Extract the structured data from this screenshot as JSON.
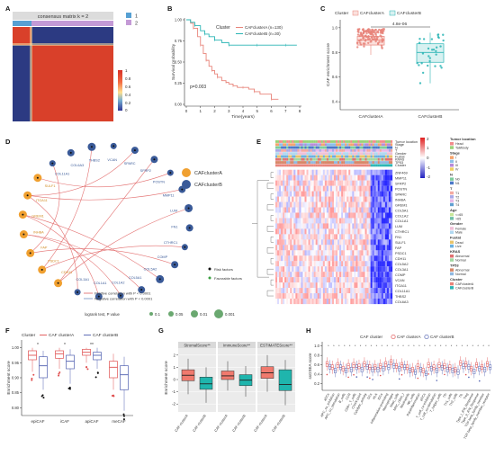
{
  "figure": {
    "panel_letters": [
      "A",
      "B",
      "C",
      "D",
      "E",
      "F",
      "G",
      "H"
    ]
  },
  "panel_a": {
    "title": "consensus matrix k = 2",
    "legend": [
      {
        "label": "1",
        "color": "#56a0d3"
      },
      {
        "label": "2",
        "color": "#c49ad6"
      }
    ],
    "scale_ticks": [
      "1",
      "0.8",
      "0.6",
      "0.4",
      "0.2",
      "0"
    ]
  },
  "panel_b": {
    "legend_title": "Cluster",
    "legend": [
      {
        "label": "CAFclusterA (n=130)",
        "color": "#e8847a"
      },
      {
        "label": "CAFclusterB (n=30)",
        "color": "#2bb5b5"
      }
    ],
    "pvalue": "p=0.003",
    "ylabel": "Survival probability",
    "xlabel": "Time(years)",
    "xticks": [
      "0",
      "1",
      "2",
      "3",
      "4",
      "5",
      "6",
      "7",
      "8"
    ],
    "yticks": [
      "0.00",
      "0.25",
      "0.50",
      "0.75",
      "1.00"
    ]
  },
  "panel_c": {
    "legend_title": "Cluster",
    "legend": [
      {
        "label": "CAFclusterA",
        "color": "#e8847a"
      },
      {
        "label": "CAFclusterB",
        "color": "#2bb5b5"
      }
    ],
    "pvalue": "4.8e-06",
    "ylabel": "CAF enrichment score",
    "categories": [
      "CAFclusterA",
      "CAFclusterB"
    ],
    "yticks": [
      "0.4",
      "0.6",
      "0.8",
      "1.0"
    ]
  },
  "panel_d": {
    "legend": [
      {
        "label": "CAFclusterA",
        "color": "#f0a030"
      },
      {
        "label": "CAFclusterB",
        "color": "#3a5a98"
      }
    ],
    "factor_legend": [
      {
        "label": "Risk factors",
        "color": "#111111"
      },
      {
        "label": "Favorable factors",
        "color": "#3aa040"
      }
    ],
    "line_legend": [
      {
        "label": "Positive correlation with P < 0.0001",
        "color": "#e06060"
      },
      {
        "label": "Negative correlation with P < 0.0001",
        "color": "#7090c0"
      }
    ],
    "size_legend_title": "logrank test, P value",
    "size_legend": [
      "0.1",
      "0.05",
      "0.01",
      "0.001"
    ],
    "genes_b": [
      "COL3A1",
      "COL1A1",
      "COL1A2",
      "COL5A1",
      "COL5A2",
      "COMP",
      "CTHRC1",
      "FN1",
      "LUM",
      "MMP11",
      "POSTN",
      "SFRP2",
      "SPARC",
      "VCAN",
      "THBS2",
      "COL6A3",
      "COL11A1"
    ],
    "genes_a": [
      "SULF1",
      "ITGA11",
      "GREM1",
      "INHBA",
      "FAP",
      "PSDC1",
      "CDH11"
    ]
  },
  "panel_e": {
    "annotation_rows": [
      "Tumor location",
      "Stage",
      "N",
      "T",
      "Gender",
      "Fustat",
      "KRAS",
      "TP53",
      "Cluster"
    ],
    "genes": [
      "ZNF469",
      "MMP11",
      "SFRP2",
      "POSTN",
      "SPARC",
      "INHBA",
      "GREM1",
      "COL5A1",
      "COL1A2",
      "COL1A1",
      "LUM",
      "CTHRC1",
      "FN1",
      "SULF1",
      "FAP",
      "PSDC1",
      "CDH11",
      "COL5A2",
      "COL3A1",
      "COMP",
      "VCAN",
      "ITGA11",
      "COL11A1",
      "THBS2",
      "COL6A3"
    ],
    "scale_ticks": [
      "2",
      "1",
      "0",
      "-1",
      "-2"
    ],
    "legend_groups": [
      {
        "title": "Tumor location",
        "items": [
          {
            "label": "Head",
            "color": "#f28c8c"
          },
          {
            "label": "Tail/Body",
            "color": "#9bd27a"
          }
        ]
      },
      {
        "title": "Stage",
        "items": [
          {
            "label": "I",
            "color": "#f5a36c"
          },
          {
            "label": "II",
            "color": "#8cc0e8"
          },
          {
            "label": "III",
            "color": "#b88ad8"
          },
          {
            "label": "IV",
            "color": "#f0d060"
          }
        ]
      },
      {
        "title": "N",
        "items": [
          {
            "label": "N0",
            "color": "#7ccc9c"
          },
          {
            "label": "N1",
            "color": "#4a78c8"
          }
        ]
      },
      {
        "title": "T",
        "items": [
          {
            "label": "T1",
            "color": "#f4a9a0"
          },
          {
            "label": "T2",
            "color": "#a8a8e8"
          },
          {
            "label": "T3",
            "color": "#e8b8e8"
          },
          {
            "label": "T4",
            "color": "#60a0d0"
          }
        ]
      },
      {
        "title": "Age",
        "items": [
          {
            "label": "<=65",
            "color": "#c8e89a"
          },
          {
            "label": ">65",
            "color": "#70c0a8"
          }
        ]
      },
      {
        "title": "Gender",
        "items": [
          {
            "label": "Female",
            "color": "#f0c0d8"
          },
          {
            "label": "Male",
            "color": "#b0d8f0"
          }
        ]
      },
      {
        "title": "Fustat",
        "items": [
          {
            "label": "Dead",
            "color": "#e9c46a"
          },
          {
            "label": "Live",
            "color": "#6ab0e0"
          }
        ]
      },
      {
        "title": "KRAS",
        "items": [
          {
            "label": "Abnormal",
            "color": "#e07070"
          },
          {
            "label": "Normal",
            "color": "#a0d8a0"
          }
        ]
      },
      {
        "title": "TP53",
        "items": [
          {
            "label": "Abnormal",
            "color": "#d88868"
          },
          {
            "label": "Normal",
            "color": "#90b8e0"
          }
        ]
      },
      {
        "title": "Cluster",
        "items": [
          {
            "label": "CAFclusterA",
            "color": "#e8847a"
          },
          {
            "label": "CAFclusterB",
            "color": "#2bb5b5"
          }
        ]
      }
    ]
  },
  "panel_f": {
    "legend_title": "Cluster",
    "legend": [
      {
        "label": "CAF clusterA",
        "color": "#e05050"
      },
      {
        "label": "CAF clusterB",
        "color": "#5060b0"
      }
    ],
    "ylabel": "Enrichment score",
    "categories": [
      "epiCAF",
      "iCAF",
      "apiCAF",
      "meCAF"
    ],
    "stars": [
      "*",
      "*",
      "**",
      ""
    ],
    "yticks": [
      "0.80",
      "0.85",
      "0.90",
      "0.95",
      "1.00"
    ]
  },
  "panel_g": {
    "strip_labels": [
      "StromalScore**",
      "ImmuneScore**",
      "ESTIMATEScore**"
    ],
    "ylabel": "Enrichment score",
    "yticks": [
      "-2",
      "-1",
      "0",
      "1",
      "2"
    ],
    "xticks": [
      "CAF clusterA",
      "CAF clusterB"
    ]
  },
  "panel_h": {
    "legend_title": "CAF cluster",
    "legend": [
      {
        "label": "CAF clusterA",
        "color": "#e05050"
      },
      {
        "label": "CAF clusterB",
        "color": "#5060b0"
      }
    ],
    "ylabel": "ssGSEA score",
    "yticks": [
      "0.2",
      "0.4",
      "0.6",
      "0.8",
      "1.0"
    ],
    "categories": [
      "aDCs",
      "APC_co_inhibition",
      "APC_co_stimulation",
      "B_cells",
      "CCR",
      "CD8+_T_cells",
      "Check-point",
      "Cytolytic_activity",
      "DCs",
      "HLA",
      "iDCs",
      "Inflammation-promoting",
      "Macrophages",
      "Mast_cells",
      "MHC_class_I",
      "Neutrophils",
      "NK_cells",
      "Parainflammation",
      "pDCs",
      "T_cell_co-inhibition",
      "T_cell_co-stimulation",
      "T_helper_cells",
      "Tfh",
      "Th1_cells",
      "Th2_cells",
      "TIL",
      "Treg",
      "Type_I_IFN_Response",
      "Type_II_IFN_Response",
      "TGF-beta_family_member",
      "TGF-beta_family_member_receptor"
    ]
  },
  "chart_data": [
    {
      "panel": "A",
      "type": "heatmap",
      "title": "consensus matrix k = 2",
      "clusters": [
        {
          "name": "1",
          "fraction": 0.19
        },
        {
          "name": "2",
          "fraction": 0.81
        }
      ],
      "value_range": [
        0,
        1
      ]
    },
    {
      "panel": "B",
      "type": "line",
      "xlabel": "Time(years)",
      "ylabel": "Survival probability",
      "xlim": [
        0,
        8
      ],
      "ylim": [
        0,
        1
      ],
      "series": [
        {
          "name": "CAFclusterA (n=130)",
          "x": [
            0,
            0.3,
            0.5,
            0.8,
            1.0,
            1.2,
            1.4,
            1.6,
            1.8,
            2.0,
            2.2,
            2.5,
            2.8,
            3.0,
            3.3,
            3.6,
            4.0,
            4.4,
            4.8,
            5.2,
            6.0,
            6.5
          ],
          "y": [
            1.0,
            0.96,
            0.9,
            0.8,
            0.7,
            0.6,
            0.52,
            0.45,
            0.4,
            0.36,
            0.32,
            0.28,
            0.26,
            0.24,
            0.22,
            0.2,
            0.2,
            0.18,
            0.15,
            0.12,
            0.06,
            0.06
          ]
        },
        {
          "name": "CAFclusterB (n=30)",
          "x": [
            0,
            0.3,
            0.6,
            1.0,
            1.3,
            1.6,
            2.0,
            2.5,
            3.0,
            4.0,
            5.0,
            6.0,
            7.0,
            7.8
          ],
          "y": [
            1.0,
            0.97,
            0.93,
            0.87,
            0.83,
            0.8,
            0.76,
            0.73,
            0.7,
            0.7,
            0.7,
            0.7,
            0.7,
            0.7
          ]
        }
      ],
      "annotation": "p=0.003"
    },
    {
      "panel": "C",
      "type": "box",
      "categories": [
        "CAFclusterA",
        "CAFclusterB"
      ],
      "ylabel": "CAF enrichment score",
      "ylim": [
        0.35,
        1.05
      ],
      "boxes": [
        {
          "name": "CAFclusterA",
          "min": 0.78,
          "q1": 0.86,
          "median": 0.9,
          "q3": 0.93,
          "max": 0.99
        },
        {
          "name": "CAFclusterB",
          "min": 0.55,
          "q1": 0.72,
          "median": 0.8,
          "q3": 0.87,
          "max": 0.96
        }
      ],
      "annotation": "4.8e-06"
    },
    {
      "panel": "F",
      "type": "box",
      "categories": [
        "epiCAF",
        "iCAF",
        "apiCAF",
        "meCAF"
      ],
      "ylabel": "Enrichment score",
      "ylim": [
        0.78,
        1.02
      ],
      "series": [
        {
          "name": "CAF clusterA",
          "boxes": [
            {
              "min": 0.92,
              "q1": 0.96,
              "median": 0.975,
              "q3": 0.99,
              "max": 1.0
            },
            {
              "min": 0.93,
              "q1": 0.965,
              "median": 0.98,
              "q3": 0.99,
              "max": 1.0
            },
            {
              "min": 0.95,
              "q1": 0.975,
              "median": 0.985,
              "q3": 0.995,
              "max": 1.0
            },
            {
              "min": 0.86,
              "q1": 0.9,
              "median": 0.935,
              "q3": 0.955,
              "max": 0.98
            }
          ]
        },
        {
          "name": "CAF clusterB",
          "boxes": [
            {
              "min": 0.86,
              "q1": 0.9,
              "median": 0.94,
              "q3": 0.97,
              "max": 0.99
            },
            {
              "min": 0.88,
              "q1": 0.93,
              "median": 0.955,
              "q3": 0.975,
              "max": 0.995
            },
            {
              "min": 0.93,
              "q1": 0.96,
              "median": 0.975,
              "q3": 0.985,
              "max": 1.0
            },
            {
              "min": 0.79,
              "q1": 0.86,
              "median": 0.91,
              "q3": 0.94,
              "max": 0.97
            }
          ]
        }
      ]
    },
    {
      "panel": "G",
      "type": "box",
      "categories": [
        "StromalScore**",
        "ImmuneScore**",
        "ESTIMATEScore**"
      ],
      "ylabel": "Enrichment score",
      "ylim": [
        -2.5,
        2.5
      ],
      "series": [
        {
          "name": "CAF clusterA",
          "boxes": [
            {
              "min": -1.2,
              "q1": -0.1,
              "median": 0.35,
              "q3": 0.8,
              "max": 1.7
            },
            {
              "min": -0.9,
              "q1": 0.0,
              "median": 0.3,
              "q3": 0.7,
              "max": 1.5
            },
            {
              "min": -1.0,
              "q1": 0.1,
              "median": 0.55,
              "q3": 1.05,
              "max": 2.0
            }
          ]
        },
        {
          "name": "CAF clusterB",
          "boxes": [
            {
              "min": -1.9,
              "q1": -0.8,
              "median": -0.35,
              "q3": 0.2,
              "max": 1.0
            },
            {
              "min": -1.4,
              "q1": -0.5,
              "median": -0.05,
              "q3": 0.4,
              "max": 1.1
            },
            {
              "min": -2.1,
              "q1": -0.9,
              "median": -0.4,
              "q3": 0.8,
              "max": 1.6
            }
          ]
        }
      ]
    },
    {
      "panel": "H",
      "type": "box",
      "ylabel": "ssGSEA score",
      "ylim": [
        0.1,
        1.05
      ],
      "series": [
        {
          "name": "CAF clusterA",
          "medians": [
            0.62,
            0.55,
            0.6,
            0.52,
            0.58,
            0.6,
            0.57,
            0.62,
            0.55,
            0.56,
            0.58,
            0.62,
            0.66,
            0.58,
            0.6,
            0.55,
            0.5,
            0.57,
            0.48,
            0.6,
            0.55,
            0.6,
            0.58,
            0.55,
            0.5,
            0.64,
            0.62,
            0.52,
            0.6,
            0.56,
            0.62
          ]
        },
        {
          "name": "CAF clusterB",
          "medians": [
            0.56,
            0.48,
            0.55,
            0.48,
            0.5,
            0.55,
            0.5,
            0.56,
            0.5,
            0.5,
            0.52,
            0.55,
            0.58,
            0.52,
            0.55,
            0.48,
            0.45,
            0.5,
            0.42,
            0.52,
            0.48,
            0.54,
            0.5,
            0.48,
            0.45,
            0.57,
            0.56,
            0.46,
            0.52,
            0.5,
            0.55
          ]
        }
      ]
    }
  ]
}
